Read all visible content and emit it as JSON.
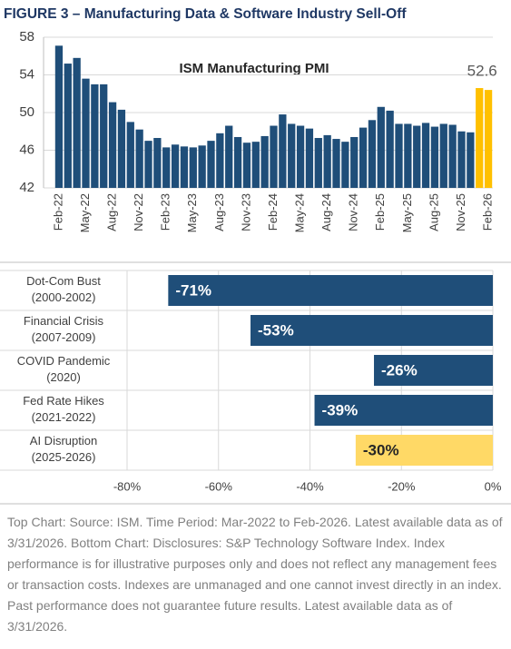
{
  "title": "FIGURE 3 – Manufacturing Data & Software Industry Sell-Off",
  "footnote": "Top Chart: Source: ISM. Time Period: Mar-2022 to Feb-2026. Latest available data as of 3/31/2026. Bottom Chart: Disclosures: S&P Technology Software Index. Index performance is for illustrative purposes only and does not reflect any management fees or transaction costs. Indexes are unmanaged and one cannot invest directly in an index. Past performance does not guarantee future results. Latest available data as of 3/31/2026.",
  "chart_data": [
    {
      "type": "bar",
      "title": "ISM Manufacturing PMI",
      "categories": [
        "Feb-22",
        null,
        null,
        "May-22",
        null,
        null,
        "Aug-22",
        null,
        null,
        "Nov-22",
        null,
        null,
        "Feb-23",
        null,
        null,
        "May-23",
        null,
        null,
        "Aug-23",
        null,
        null,
        "Nov-23",
        null,
        null,
        "Feb-24",
        null,
        null,
        "May-24",
        null,
        null,
        "Aug-24",
        null,
        null,
        "Nov-24",
        null,
        null,
        "Feb-25",
        null,
        null,
        "May-25",
        null,
        null,
        "Aug-25",
        null,
        null,
        "Nov-25",
        null,
        null,
        "Feb-26"
      ],
      "values": [
        57.1,
        55.2,
        55.8,
        53.6,
        53.0,
        53.0,
        51.1,
        50.3,
        49.0,
        48.2,
        47.0,
        47.3,
        46.3,
        46.6,
        46.4,
        46.3,
        46.5,
        47.0,
        47.8,
        48.6,
        47.4,
        46.8,
        46.9,
        47.5,
        48.6,
        49.8,
        48.8,
        48.6,
        48.3,
        47.3,
        47.6,
        47.2,
        46.9,
        47.4,
        48.4,
        49.2,
        50.6,
        50.2,
        48.8,
        48.8,
        48.6,
        48.9,
        48.5,
        48.8,
        48.7,
        48.0,
        47.9,
        52.6,
        52.4
      ],
      "colors": [
        "#1f4e79",
        "#1f4e79",
        "#1f4e79",
        "#1f4e79",
        "#1f4e79",
        "#1f4e79",
        "#1f4e79",
        "#1f4e79",
        "#1f4e79",
        "#1f4e79",
        "#1f4e79",
        "#1f4e79",
        "#1f4e79",
        "#1f4e79",
        "#1f4e79",
        "#1f4e79",
        "#1f4e79",
        "#1f4e79",
        "#1f4e79",
        "#1f4e79",
        "#1f4e79",
        "#1f4e79",
        "#1f4e79",
        "#1f4e79",
        "#1f4e79",
        "#1f4e79",
        "#1f4e79",
        "#1f4e79",
        "#1f4e79",
        "#1f4e79",
        "#1f4e79",
        "#1f4e79",
        "#1f4e79",
        "#1f4e79",
        "#1f4e79",
        "#1f4e79",
        "#1f4e79",
        "#1f4e79",
        "#1f4e79",
        "#1f4e79",
        "#1f4e79",
        "#1f4e79",
        "#1f4e79",
        "#1f4e79",
        "#1f4e79",
        "#1f4e79",
        "#1f4e79",
        "#ffc000",
        "#ffc000"
      ],
      "ylim": [
        42,
        58
      ],
      "yticks": [
        42,
        46,
        50,
        54,
        58
      ],
      "grid": true
    },
    {
      "type": "hbar",
      "categories": [
        "Dot-Com Bust (2000-2002)",
        "Financial Crisis (2007-2009)",
        "COVID Pandemic (2020)",
        "Fed Rate Hikes (2021-2022)",
        "AI Disruption (2025-2026)"
      ],
      "values": [
        -71,
        -53,
        -26,
        -39,
        -30
      ],
      "value_labels": [
        "-71%",
        "-53%",
        "-26%",
        "-39%",
        "-30%"
      ],
      "colors": [
        "#1f4e79",
        "#1f4e79",
        "#1f4e79",
        "#1f4e79",
        "#ffd966"
      ],
      "xlim": [
        -80,
        0
      ],
      "xticks": [
        {
          "value": -80,
          "label": "-80%"
        },
        {
          "value": -60,
          "label": "-60%"
        },
        {
          "value": -40,
          "label": "-40%"
        },
        {
          "value": -20,
          "label": "-20%"
        },
        {
          "value": 0,
          "label": "0%"
        }
      ],
      "grid": true
    }
  ]
}
